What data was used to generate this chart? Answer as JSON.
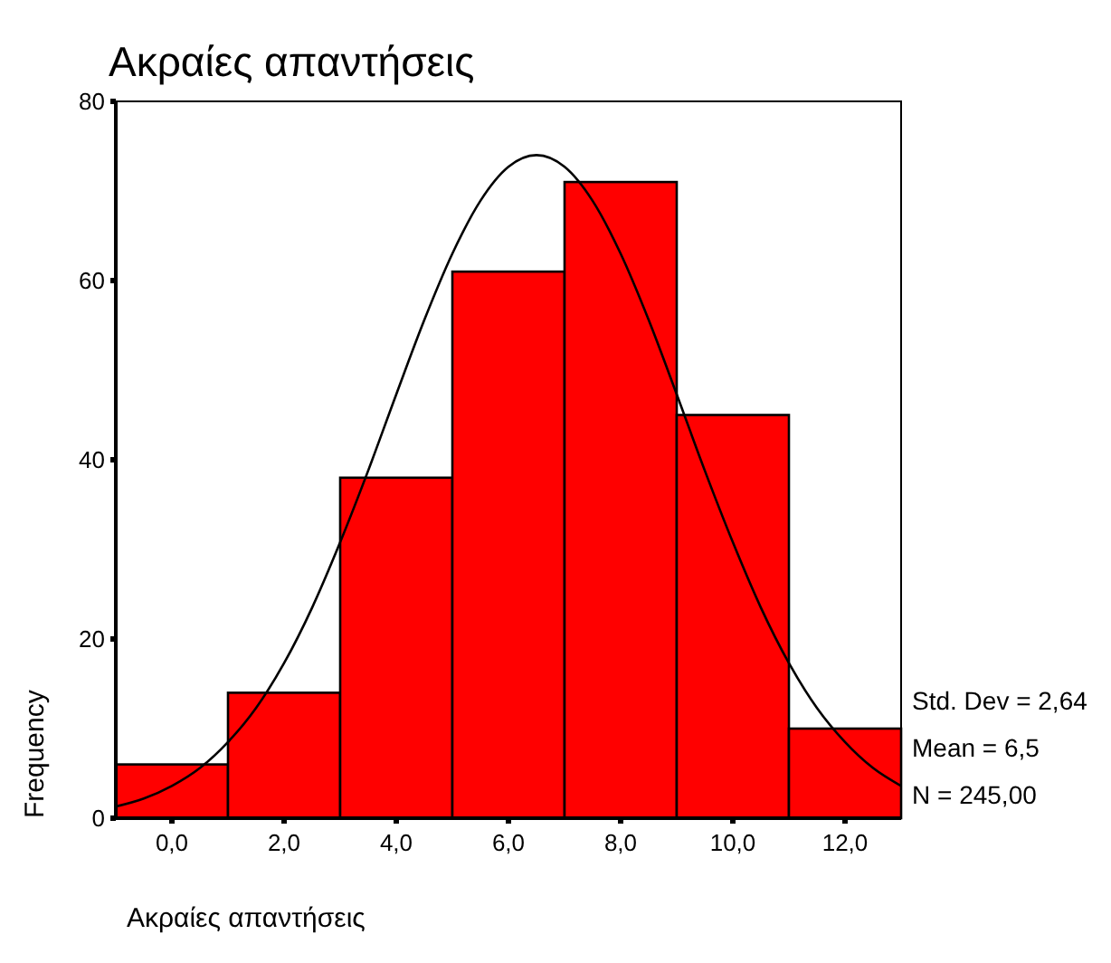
{
  "chart_data": {
    "type": "histogram",
    "title": "Ακραίες απαντήσεις",
    "xlabel": "Ακραίες απαντήσεις",
    "ylabel": "Frequency",
    "bins": [
      -1,
      1,
      3,
      5,
      7,
      9,
      11,
      13
    ],
    "values": [
      6,
      14,
      38,
      61,
      71,
      45,
      10
    ],
    "color": "#ff0000",
    "series": [
      {
        "type": "line",
        "color": "#000000",
        "x": [
          -1,
          -0.5,
          0,
          0.5,
          1,
          1.5,
          2,
          2.5,
          3,
          3.5,
          4,
          4.5,
          5,
          5.5,
          6,
          6.5,
          7,
          7.5,
          8,
          8.5,
          9,
          9.5,
          10,
          10.5,
          11,
          11.5,
          12,
          12.5,
          13
        ],
        "values": [
          1.3,
          2.2,
          3.6,
          5.6,
          8.5,
          12.3,
          17.3,
          23.5,
          30.8,
          38.8,
          47.3,
          55.6,
          63,
          68.9,
          72.7,
          74,
          72.7,
          68.9,
          63,
          55.6,
          47.3,
          38.8,
          30.8,
          23.5,
          17.3,
          12.3,
          8.5,
          5.6,
          3.6
        ]
      }
    ],
    "xlim": [
      -1,
      13
    ],
    "xticks": [
      {
        "value": 0,
        "label": "0,0"
      },
      {
        "value": 2,
        "label": "2,0"
      },
      {
        "value": 4,
        "label": "4,0"
      },
      {
        "value": 6,
        "label": "6,0"
      },
      {
        "value": 8,
        "label": "8,0"
      },
      {
        "value": 10,
        "label": "10,0"
      },
      {
        "value": 12,
        "label": "12,0"
      }
    ],
    "ylim": [
      0,
      80
    ],
    "yticks": [
      0,
      20,
      40,
      60,
      80
    ],
    "annotations": [
      "Std. Dev = 2,64",
      "Mean = 6,5",
      "N = 245,00"
    ]
  }
}
